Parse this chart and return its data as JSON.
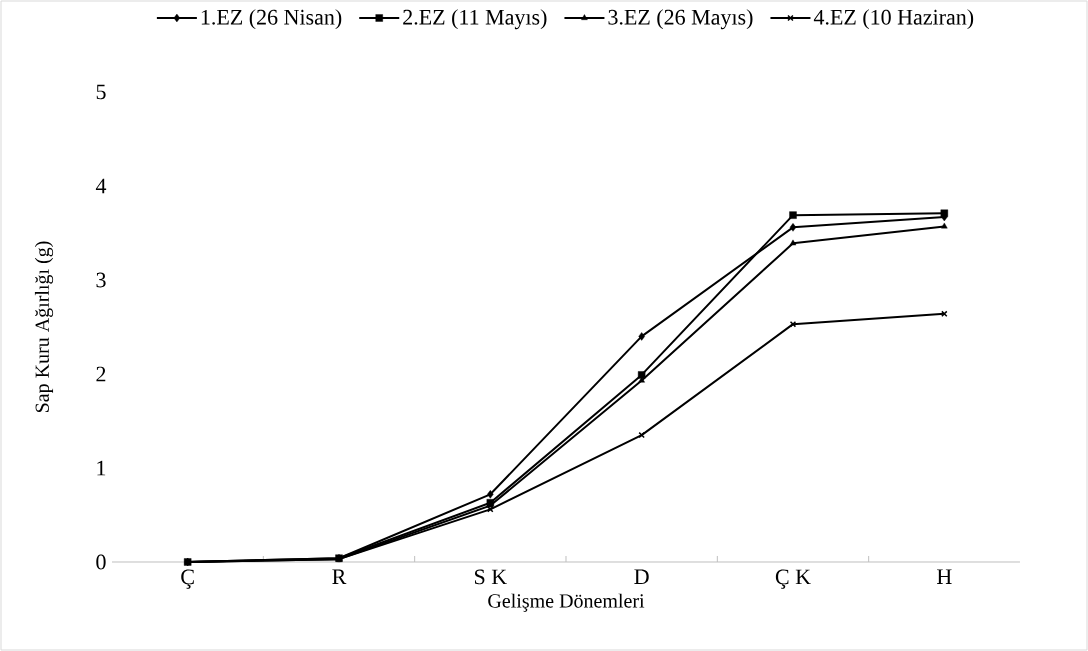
{
  "chart_data": {
    "type": "line",
    "xlabel": "Gelişme Dönemleri",
    "ylabel": "Sap Kuru Ağırlığı (g)",
    "categories": [
      "Ç",
      "R",
      "S K",
      "D",
      "Ç K",
      "H"
    ],
    "series": [
      {
        "name": "1.EZ (26 Nisan)",
        "color": "#000000",
        "marker": "diamond",
        "values": [
          0,
          0.04,
          0.72,
          2.4,
          3.56,
          3.67
        ]
      },
      {
        "name": "2.EZ (11 Mayıs)",
        "color": "#000000",
        "marker": "square",
        "values": [
          0,
          0.04,
          0.63,
          1.99,
          3.69,
          3.71
        ]
      },
      {
        "name": "3.EZ (26 Mayıs)",
        "color": "#000000",
        "marker": "triangle",
        "values": [
          0,
          0.03,
          0.6,
          1.93,
          3.39,
          3.57
        ]
      },
      {
        "name": "4.EZ (10 Haziran)",
        "color": "#000000",
        "marker": "cross",
        "values": [
          0,
          0.03,
          0.56,
          1.35,
          2.53,
          2.64
        ]
      }
    ],
    "ylim": [
      0,
      5
    ],
    "yticks": [
      0,
      1,
      2,
      3,
      4,
      5
    ],
    "grid": false,
    "legend": "top",
    "line_style": "solid"
  }
}
